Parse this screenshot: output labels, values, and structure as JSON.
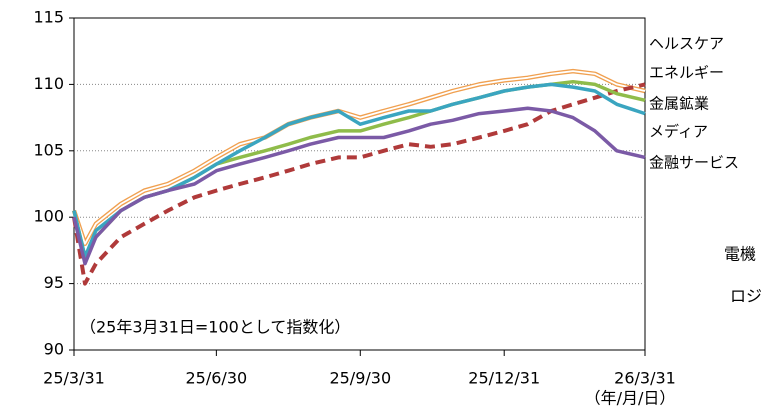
{
  "chart_data": {
    "type": "line",
    "annotations": [
      "（25年3月31日=100として指数化）",
      "電機",
      "ロジ"
    ],
    "x_unit": "（年/月/日）",
    "x": [
      "25/3/31",
      "25/4/7",
      "25/4/14",
      "25/4/30",
      "25/5/15",
      "25/5/30",
      "25/6/16",
      "25/6/30",
      "25/7/15",
      "25/7/31",
      "25/8/15",
      "25/8/29",
      "25/9/16",
      "25/9/30",
      "25/10/15",
      "25/10/31",
      "25/11/14",
      "25/11/28",
      "25/12/15",
      "25/12/31",
      "26/1/15",
      "26/1/30",
      "26/2/13",
      "26/2/27",
      "26/3/13",
      "26/3/31"
    ],
    "xlim": [
      "25/3/31",
      "26/3/31"
    ],
    "xticks": [
      "25/3/31",
      "25/6/30",
      "25/9/30",
      "25/12/31",
      "26/3/31"
    ],
    "ylim": [
      90,
      115
    ],
    "yticks": [
      90,
      95,
      100,
      105,
      110,
      115
    ],
    "grid": true,
    "series": [
      {
        "name": "ヘルスケア",
        "color": "#f0a050",
        "style": "double",
        "values": [
          100.5,
          98.0,
          99.5,
          101.0,
          102.0,
          102.5,
          103.5,
          104.5,
          105.5,
          106.0,
          107.0,
          107.5,
          108.0,
          107.5,
          108.0,
          108.5,
          109.0,
          109.5,
          110.0,
          110.3,
          110.5,
          110.8,
          111.0,
          110.8,
          110.0,
          109.5
        ]
      },
      {
        "name": "エネルギー",
        "color": "#b03a3a",
        "style": "dashed",
        "values": [
          100.0,
          95.0,
          96.5,
          98.5,
          99.5,
          100.5,
          101.5,
          102.0,
          102.5,
          103.0,
          103.5,
          104.0,
          104.5,
          104.5,
          105.0,
          105.5,
          105.3,
          105.5,
          106.0,
          106.5,
          107.0,
          108.0,
          108.5,
          109.0,
          109.5,
          110.0
        ]
      },
      {
        "name": "金属鉱業",
        "color": "#8fbc4a",
        "style": "solid",
        "values": [
          100.5,
          97.0,
          98.5,
          100.5,
          101.5,
          102.0,
          103.0,
          104.0,
          104.5,
          105.0,
          105.5,
          106.0,
          106.5,
          106.5,
          107.0,
          107.5,
          108.0,
          108.5,
          109.0,
          109.5,
          109.8,
          110.0,
          110.2,
          110.0,
          109.3,
          108.8
        ]
      },
      {
        "name": "メディア",
        "color": "#3aa5c0",
        "style": "solid",
        "values": [
          100.5,
          97.0,
          99.0,
          100.5,
          101.5,
          102.0,
          103.0,
          104.0,
          105.0,
          106.0,
          107.0,
          107.5,
          108.0,
          107.0,
          107.5,
          108.0,
          108.0,
          108.5,
          109.0,
          109.5,
          109.8,
          110.0,
          109.8,
          109.5,
          108.5,
          107.8
        ]
      },
      {
        "name": "金融サービス",
        "color": "#7b5aa6",
        "style": "solid",
        "values": [
          100.0,
          96.5,
          98.5,
          100.5,
          101.5,
          102.0,
          102.5,
          103.5,
          104.0,
          104.5,
          105.0,
          105.5,
          106.0,
          106.0,
          106.0,
          106.5,
          107.0,
          107.3,
          107.8,
          108.0,
          108.2,
          108.0,
          107.5,
          106.5,
          105.0,
          104.5
        ]
      }
    ]
  }
}
